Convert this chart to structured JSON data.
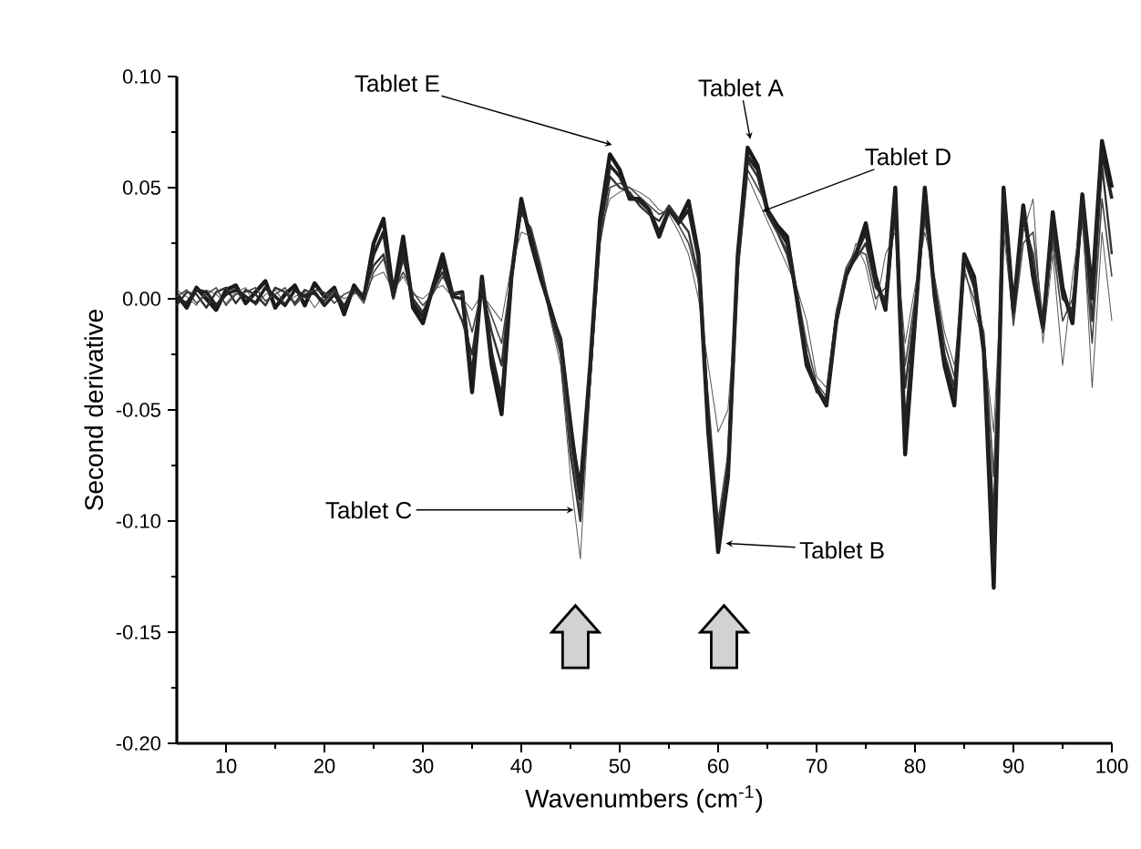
{
  "chart_data": {
    "type": "line",
    "xlabel": "Wavenumbers (cm$^{-1}$)",
    "ylabel": "Second derivative",
    "xlim": [
      5,
      100
    ],
    "ylim": [
      -0.2,
      0.1
    ],
    "xticks": [
      10,
      20,
      30,
      40,
      50,
      60,
      70,
      80,
      90,
      100
    ],
    "yticks": [
      {
        "value": -0.2,
        "label": "-0.20"
      },
      {
        "value": -0.15,
        "label": "-0.15"
      },
      {
        "value": -0.1,
        "label": "-0.10"
      },
      {
        "value": -0.05,
        "label": "-0.05"
      },
      {
        "value": 0,
        "label": "0.00"
      },
      {
        "value": 0.05,
        "label": "0.05"
      },
      {
        "value": 0.1,
        "label": "0.10"
      }
    ],
    "x": [
      5,
      6,
      7,
      8,
      9,
      10,
      11,
      12,
      13,
      14,
      15,
      16,
      17,
      18,
      19,
      20,
      21,
      22,
      23,
      24,
      25,
      26,
      27,
      28,
      29,
      30,
      31,
      32,
      33,
      34,
      35,
      36,
      37,
      38,
      39,
      40,
      41,
      42,
      43,
      44,
      45,
      46,
      47,
      48,
      49,
      50,
      51,
      52,
      53,
      54,
      55,
      56,
      57,
      58,
      59,
      60,
      61,
      62,
      63,
      64,
      65,
      66,
      67,
      68,
      69,
      70,
      71,
      72,
      73,
      74,
      75,
      76,
      77,
      78,
      79,
      80,
      81,
      82,
      83,
      84,
      85,
      86,
      87,
      88,
      89,
      90,
      91,
      92,
      93,
      94,
      95,
      96,
      97,
      98,
      99,
      100
    ],
    "series": [
      {
        "color": "#1a1a1a",
        "values": [
          0.002,
          -0.004,
          0.005,
          0.0,
          -0.005,
          0.004,
          0.006,
          -0.002,
          0.003,
          0.008,
          -0.004,
          0.002,
          0.006,
          -0.003,
          0.007,
          0.001,
          0.005,
          -0.007,
          0.006,
          0.0,
          0.025,
          0.036,
          0.002,
          0.028,
          -0.004,
          -0.011,
          0.005,
          0.02,
          0.002,
          0.003,
          -0.042,
          0.01,
          -0.03,
          -0.052,
          0.01,
          0.045,
          0.025,
          0.009,
          -0.005,
          -0.02,
          -0.06,
          -0.086,
          -0.03,
          0.036,
          0.065,
          0.058,
          0.045,
          0.045,
          0.04,
          0.028,
          0.04,
          0.035,
          0.044,
          0.02,
          -0.06,
          -0.114,
          -0.08,
          0.02,
          0.068,
          0.06,
          0.04,
          0.033,
          0.028,
          0.0,
          -0.03,
          -0.04,
          -0.048,
          -0.01,
          0.011,
          0.02,
          0.034,
          0.01,
          -0.005,
          0.05,
          -0.07,
          -0.01,
          0.05,
          0.001,
          -0.03,
          -0.048,
          0.02,
          0.01,
          -0.024,
          -0.13,
          0.05,
          -0.005,
          0.042,
          0.01,
          -0.013,
          0.039,
          0.005,
          -0.011,
          0.047,
          0.003,
          0.071,
          0.05
        ]
      },
      {
        "color": "#555555",
        "values": [
          0.004,
          0.001,
          -0.003,
          0.004,
          0.002,
          -0.002,
          0.003,
          0.005,
          -0.003,
          0.002,
          0.004,
          -0.002,
          0.001,
          0.003,
          -0.004,
          0.002,
          0.003,
          0.0,
          0.002,
          0.003,
          0.01,
          0.012,
          0.004,
          0.01,
          0.002,
          0.0,
          0.004,
          0.006,
          0.001,
          0.0,
          -0.005,
          0.002,
          -0.004,
          -0.01,
          0.015,
          0.03,
          0.028,
          0.01,
          -0.01,
          -0.03,
          -0.08,
          -0.117,
          -0.04,
          0.03,
          0.045,
          0.048,
          0.05,
          0.048,
          0.045,
          0.04,
          0.038,
          0.03,
          0.02,
          0.0,
          -0.03,
          -0.06,
          -0.05,
          0.01,
          0.055,
          0.045,
          0.035,
          0.025,
          0.015,
          0.005,
          -0.01,
          -0.035,
          -0.04,
          -0.005,
          0.01,
          0.025,
          0.015,
          -0.005,
          0.02,
          0.03,
          -0.02,
          0.005,
          0.03,
          0.01,
          -0.015,
          -0.03,
          0.015,
          -0.005,
          -0.02,
          -0.06,
          0.03,
          -0.01,
          0.03,
          0.045,
          -0.02,
          0.02,
          -0.03,
          0.01,
          0.04,
          -0.04,
          0.03,
          -0.01
        ]
      },
      {
        "color": "#333333",
        "values": [
          -0.003,
          0.003,
          0.002,
          -0.004,
          0.003,
          0.005,
          -0.002,
          0.004,
          0.002,
          -0.003,
          0.005,
          0.003,
          -0.002,
          0.004,
          0.002,
          -0.001,
          0.004,
          -0.003,
          0.003,
          0.002,
          0.015,
          0.02,
          0.0,
          0.018,
          0.0,
          -0.006,
          0.004,
          0.012,
          0.0,
          -0.01,
          -0.025,
          0.005,
          -0.015,
          -0.03,
          0.012,
          0.04,
          0.03,
          0.012,
          -0.008,
          -0.025,
          -0.07,
          -0.1,
          -0.035,
          0.03,
          0.055,
          0.05,
          0.048,
          0.042,
          0.038,
          0.035,
          0.042,
          0.036,
          0.03,
          0.01,
          -0.05,
          -0.105,
          -0.075,
          0.015,
          0.062,
          0.055,
          0.038,
          0.03,
          0.02,
          0.002,
          -0.025,
          -0.042,
          -0.045,
          -0.008,
          0.012,
          0.018,
          0.025,
          0.005,
          0.0,
          0.04,
          -0.04,
          -0.005,
          0.04,
          0.005,
          -0.025,
          -0.04,
          0.018,
          0.005,
          -0.02,
          -0.1,
          0.045,
          -0.008,
          0.035,
          0.02,
          -0.015,
          0.03,
          0.0,
          -0.005,
          0.042,
          -0.01,
          0.06,
          0.02
        ]
      },
      {
        "color": "#444444",
        "values": [
          0.001,
          0.004,
          -0.002,
          0.002,
          0.005,
          -0.003,
          0.002,
          0.003,
          0.005,
          -0.001,
          0.002,
          0.005,
          -0.003,
          0.002,
          0.004,
          0.003,
          -0.002,
          0.002,
          0.004,
          -0.002,
          0.012,
          0.018,
          0.003,
          0.012,
          0.003,
          -0.003,
          0.002,
          0.01,
          0.003,
          0.002,
          -0.015,
          0.004,
          -0.008,
          -0.02,
          0.01,
          0.038,
          0.032,
          0.015,
          -0.005,
          -0.022,
          -0.065,
          -0.095,
          -0.038,
          0.025,
          0.05,
          0.052,
          0.05,
          0.046,
          0.042,
          0.038,
          0.04,
          0.033,
          0.025,
          0.008,
          -0.045,
          -0.1,
          -0.07,
          0.012,
          0.058,
          0.05,
          0.042,
          0.03,
          0.022,
          0.004,
          -0.02,
          -0.038,
          -0.044,
          -0.006,
          0.014,
          0.022,
          0.02,
          0.0,
          0.005,
          0.035,
          -0.03,
          0.0,
          0.035,
          0.008,
          -0.02,
          -0.035,
          0.012,
          0.0,
          -0.015,
          -0.08,
          0.038,
          -0.012,
          0.025,
          0.03,
          -0.01,
          0.025,
          -0.01,
          0.0,
          0.035,
          -0.02,
          0.045,
          0.01
        ]
      },
      {
        "color": "#222222",
        "values": [
          0.0,
          -0.002,
          0.004,
          0.003,
          -0.003,
          0.002,
          0.004,
          0.001,
          -0.002,
          0.005,
          0.001,
          -0.003,
          0.004,
          0.001,
          0.003,
          -0.003,
          0.002,
          -0.004,
          0.005,
          0.001,
          0.02,
          0.03,
          0.001,
          0.022,
          -0.002,
          -0.008,
          0.004,
          0.016,
          0.001,
          0.0,
          -0.035,
          0.008,
          -0.025,
          -0.045,
          0.01,
          0.042,
          0.028,
          0.01,
          -0.006,
          -0.018,
          -0.055,
          -0.09,
          -0.032,
          0.032,
          0.06,
          0.055,
          0.046,
          0.044,
          0.04,
          0.03,
          0.04,
          0.034,
          0.04,
          0.018,
          -0.055,
          -0.11,
          -0.078,
          0.018,
          0.064,
          0.058,
          0.04,
          0.032,
          0.025,
          0.001,
          -0.028,
          -0.04,
          -0.047,
          -0.01,
          0.01,
          0.02,
          0.03,
          0.008,
          -0.003,
          0.045,
          -0.06,
          -0.008,
          0.045,
          0.003,
          -0.028,
          -0.045,
          0.018,
          0.008,
          -0.022,
          -0.12,
          0.048,
          -0.006,
          0.04,
          0.012,
          -0.012,
          0.036,
          0.003,
          -0.009,
          0.045,
          0.0,
          0.066,
          0.045
        ]
      }
    ],
    "annotations": [
      {
        "text": "Tablet E",
        "x": 49.4,
        "y": 0.069
      },
      {
        "text": "Tablet A",
        "x": 63.3,
        "y": 0.071
      },
      {
        "text": "Tablet D",
        "x": 64.3,
        "y": 0.039
      },
      {
        "text": "Tablet C",
        "x": 45.5,
        "y": -0.095
      },
      {
        "text": "Tablet B",
        "x": 60.6,
        "y": -0.11
      }
    ]
  }
}
